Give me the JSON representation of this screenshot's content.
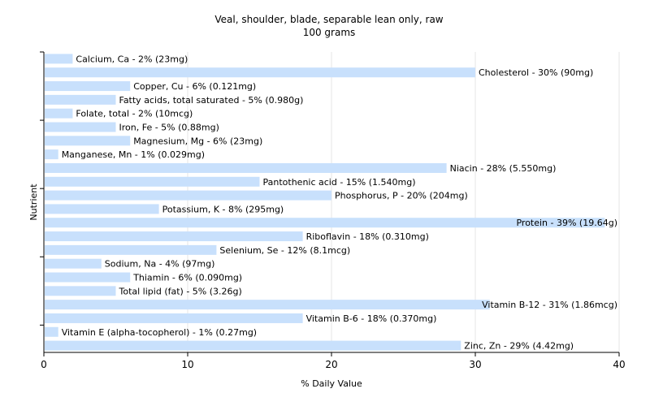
{
  "chart_data": {
    "type": "bar",
    "orientation": "horizontal",
    "title": "Veal, shoulder, blade, separable lean only, raw",
    "subtitle": "100 grams",
    "xlabel": "% Daily Value",
    "ylabel": "Nutrient",
    "xlim": [
      0,
      40
    ],
    "xticks": [
      0,
      10,
      20,
      30,
      40
    ],
    "grid": true,
    "bar_color": "#c8e0fc",
    "categories": [
      "Calcium, Ca",
      "Cholesterol",
      "Copper, Cu",
      "Fatty acids, total saturated",
      "Folate, total",
      "Iron, Fe",
      "Magnesium, Mg",
      "Manganese, Mn",
      "Niacin",
      "Pantothenic acid",
      "Phosphorus, P",
      "Potassium, K",
      "Protein",
      "Riboflavin",
      "Selenium, Se",
      "Sodium, Na",
      "Thiamin",
      "Total lipid (fat)",
      "Vitamin B-12",
      "Vitamin B-6",
      "Vitamin E (alpha-tocopherol)",
      "Zinc, Zn"
    ],
    "values": [
      2,
      30,
      6,
      5,
      2,
      5,
      6,
      1,
      28,
      15,
      20,
      8,
      39,
      18,
      12,
      4,
      6,
      5,
      31,
      18,
      1,
      29
    ],
    "labels": [
      "Calcium, Ca - 2% (23mg)",
      "Cholesterol - 30% (90mg)",
      "Copper, Cu - 6% (0.121mg)",
      "Fatty acids, total saturated - 5% (0.980g)",
      "Folate, total - 2% (10mcg)",
      "Iron, Fe - 5% (0.88mg)",
      "Magnesium, Mg - 6% (23mg)",
      "Manganese, Mn - 1% (0.029mg)",
      "Niacin - 28% (5.550mg)",
      "Pantothenic acid - 15% (1.540mg)",
      "Phosphorus, P - 20% (204mg)",
      "Potassium, K - 8% (295mg)",
      "Protein - 39% (19.64g)",
      "Riboflavin - 18% (0.310mg)",
      "Selenium, Se - 12% (8.1mcg)",
      "Sodium, Na - 4% (97mg)",
      "Thiamin - 6% (0.090mg)",
      "Total lipid (fat) - 5% (3.26g)",
      "Vitamin B-12 - 31% (1.86mcg)",
      "Vitamin B-6 - 18% (0.370mg)",
      "Vitamin E (alpha-tocopherol) - 1% (0.27mg)",
      "Zinc, Zn - 29% (4.42mg)"
    ]
  }
}
